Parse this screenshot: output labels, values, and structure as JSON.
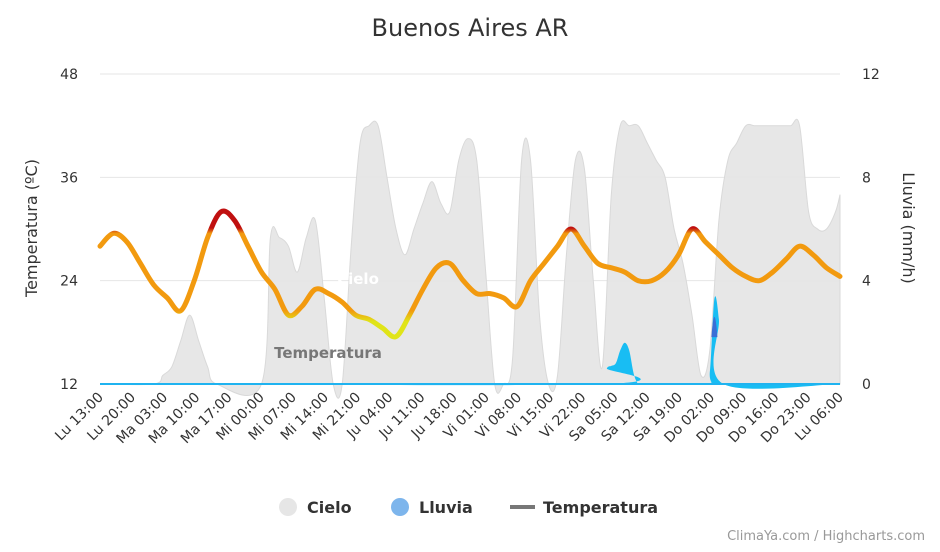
{
  "title": "Buenos Aires AR",
  "credit": "ClimaYa.com / Highcharts.com",
  "colors": {
    "cloud_fill": "#e6e6e6",
    "cloud_stroke": "#d8d8d8",
    "rain_fill": "#18bdf3",
    "rain_heavy": "#3b6fd6",
    "temp_orange": "#f29a0f",
    "temp_hot": "#c01010",
    "temp_cool": "#e0e418",
    "gridline": "#e6e6e6",
    "baseline": "#1fb3f0"
  },
  "series_labels": {
    "cloud": "Cielo",
    "temperature": "Temperatura"
  },
  "legend": [
    {
      "name": "Cielo",
      "icon": "circle",
      "color": "#e6e6e6"
    },
    {
      "name": "Lluvia",
      "icon": "circle",
      "color": "#7db5ec"
    },
    {
      "name": "Temperatura",
      "icon": "line",
      "color": "#777777"
    }
  ],
  "chart_data": {
    "type": "line",
    "title": "Buenos Aires AR",
    "x_tick_labels": [
      "Lu 13:00",
      "Lu 20:00",
      "Ma 03:00",
      "Ma 10:00",
      "Ma 17:00",
      "Mi 00:00",
      "Mi 07:00",
      "Mi 14:00",
      "Mi 21:00",
      "Ju 04:00",
      "Ju 11:00",
      "Ju 18:00",
      "Vi 01:00",
      "Vi 08:00",
      "Vi 15:00",
      "Vi 22:00",
      "Sa 05:00",
      "Sa 12:00",
      "Sa 19:00",
      "Do 02:00",
      "Do 09:00",
      "Do 16:00",
      "Do 23:00",
      "Lu 06:00"
    ],
    "x_range": [
      0,
      165
    ],
    "y_left": {
      "label": "Temperatura (ºC)",
      "ticks": [
        12,
        24,
        36,
        48
      ],
      "range": [
        12,
        48
      ]
    },
    "y_right": {
      "label": "Lluvia (mm/h)",
      "ticks": [
        0,
        4,
        8,
        12
      ],
      "range": [
        0,
        12
      ]
    },
    "grid": true,
    "legend_position": "bottom",
    "series": [
      {
        "name": "Temperatura",
        "axis": "left",
        "x": [
          0,
          3,
          6,
          9,
          12,
          15,
          18,
          21,
          24,
          27,
          30,
          33,
          36,
          39,
          42,
          45,
          48,
          51,
          54,
          57,
          60,
          63,
          66,
          69,
          72,
          75,
          78,
          81,
          84,
          87,
          90,
          93,
          96,
          99,
          102,
          105,
          108,
          111,
          114,
          117,
          120,
          123,
          126,
          129,
          132,
          135,
          138,
          141,
          144,
          147,
          150,
          153,
          156,
          159,
          162,
          165
        ],
        "values": [
          28,
          29.5,
          28.5,
          26,
          23.5,
          22,
          20.5,
          24,
          29,
          32,
          31,
          28,
          25,
          23,
          20,
          21,
          23,
          22.5,
          21.5,
          20,
          19.5,
          18.5,
          17.5,
          20,
          23,
          25.5,
          26,
          24,
          22.5,
          22.5,
          22,
          21,
          24,
          26,
          28,
          30,
          28,
          26,
          25.5,
          25,
          24,
          24,
          25,
          27,
          30,
          28.5,
          27,
          25.5,
          24.5,
          24,
          25,
          26.5,
          28,
          27,
          25.5,
          24.5
        ]
      },
      {
        "name": "Lluvia",
        "axis": "right",
        "x": [
          0,
          112,
          113,
          114,
          115,
          116,
          117,
          118,
          119,
          120,
          121,
          135,
          136,
          137,
          138,
          139,
          165
        ],
        "values": [
          0,
          0,
          0.6,
          0.7,
          0.8,
          1.3,
          1.6,
          1.3,
          0.4,
          0,
          0,
          0,
          0.5,
          3.3,
          2.5,
          0,
          0
        ]
      },
      {
        "name": "Cielo",
        "axis": "left",
        "x": [
          0,
          12,
          14,
          16,
          18,
          20,
          22,
          24,
          26,
          36,
          38,
          40,
          42,
          44,
          46,
          48,
          50,
          52,
          54,
          56,
          58,
          60,
          62,
          64,
          66,
          68,
          70,
          72,
          74,
          76,
          78,
          80,
          82,
          84,
          86,
          88,
          90,
          92,
          94,
          96,
          98,
          100,
          102,
          104,
          106,
          108,
          110,
          112,
          114,
          116,
          118,
          120,
          122,
          124,
          126,
          128,
          130,
          132,
          134,
          136,
          138,
          140,
          142,
          144,
          146,
          148,
          150,
          152,
          154,
          156,
          158,
          160,
          162,
          164,
          165
        ],
        "values": [
          12,
          12,
          13,
          14,
          17,
          20,
          17,
          14,
          12,
          12,
          29,
          29,
          28,
          25,
          29,
          31,
          22,
          12,
          12,
          28,
          40,
          42,
          42,
          36,
          30,
          27,
          30,
          33,
          35.5,
          33,
          32,
          38,
          40.5,
          38,
          25,
          12,
          12,
          15,
          38,
          38,
          20,
          12,
          13,
          27,
          38,
          37,
          24,
          14,
          34,
          42,
          42,
          42,
          40,
          38,
          36,
          30,
          26,
          20,
          13,
          16,
          31,
          38,
          40,
          42,
          42,
          42,
          42,
          42,
          42,
          42,
          32,
          30,
          30,
          32,
          34
        ]
      }
    ]
  }
}
